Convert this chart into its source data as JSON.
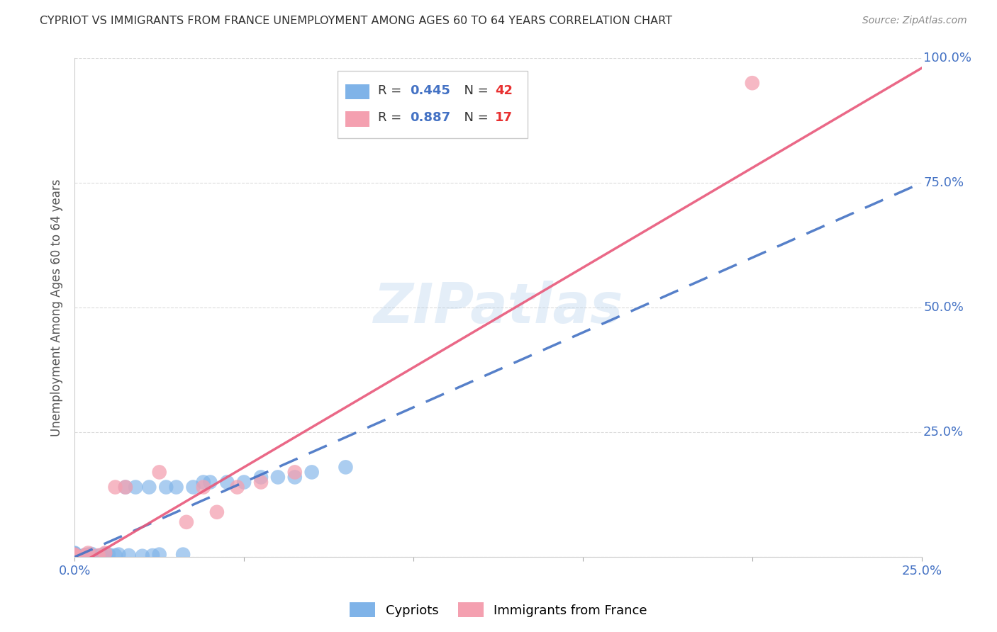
{
  "title": "CYPRIOT VS IMMIGRANTS FROM FRANCE UNEMPLOYMENT AMONG AGES 60 TO 64 YEARS CORRELATION CHART",
  "source": "Source: ZipAtlas.com",
  "ylabel": "Unemployment Among Ages 60 to 64 years",
  "watermark": "ZIPatlas",
  "xlim": [
    0,
    0.25
  ],
  "ylim": [
    0,
    1.0
  ],
  "xticks": [
    0.0,
    0.05,
    0.1,
    0.15,
    0.2,
    0.25
  ],
  "yticks": [
    0.0,
    0.25,
    0.5,
    0.75,
    1.0
  ],
  "cypriot_color": "#7fb3e8",
  "france_color": "#f4a0b0",
  "cypriot_R": 0.445,
  "cypriot_N": 42,
  "france_R": 0.887,
  "france_N": 17,
  "cypriot_x": [
    0.0,
    0.0,
    0.0,
    0.0,
    0.0,
    0.0,
    0.0,
    0.0,
    0.0,
    0.0,
    0.002,
    0.003,
    0.003,
    0.004,
    0.005,
    0.005,
    0.007,
    0.008,
    0.009,
    0.01,
    0.012,
    0.013,
    0.015,
    0.016,
    0.018,
    0.02,
    0.022,
    0.023,
    0.025,
    0.027,
    0.03,
    0.032,
    0.035,
    0.038,
    0.04,
    0.045,
    0.05,
    0.055,
    0.06,
    0.065,
    0.07,
    0.08
  ],
  "cypriot_y": [
    0.0,
    0.0,
    0.0,
    0.002,
    0.003,
    0.004,
    0.005,
    0.006,
    0.007,
    0.008,
    0.0,
    0.002,
    0.004,
    0.005,
    0.003,
    0.006,
    0.002,
    0.004,
    0.006,
    0.005,
    0.003,
    0.005,
    0.14,
    0.003,
    0.14,
    0.002,
    0.14,
    0.003,
    0.005,
    0.14,
    0.14,
    0.005,
    0.14,
    0.15,
    0.15,
    0.15,
    0.15,
    0.16,
    0.16,
    0.16,
    0.17,
    0.18
  ],
  "france_x": [
    0.0,
    0.0,
    0.0,
    0.003,
    0.004,
    0.007,
    0.009,
    0.012,
    0.015,
    0.025,
    0.033,
    0.038,
    0.042,
    0.048,
    0.055,
    0.065,
    0.2
  ],
  "france_y": [
    0.0,
    0.003,
    0.005,
    0.003,
    0.008,
    0.003,
    0.008,
    0.14,
    0.14,
    0.17,
    0.07,
    0.14,
    0.09,
    0.14,
    0.15,
    0.17,
    0.95
  ],
  "trendline_blue_slope": 3.0,
  "trendline_blue_intercept": 0.0,
  "trendline_pink_slope": 4.0,
  "trendline_pink_intercept": -0.02,
  "background_color": "#ffffff",
  "grid_color": "#cccccc",
  "title_color": "#333333",
  "axis_label_color": "#555555",
  "tick_label_color": "#4472c4",
  "trendline_blue_color": "#4472c4",
  "trendline_pink_color": "#e8587a",
  "legend_box_color": "#cccccc"
}
